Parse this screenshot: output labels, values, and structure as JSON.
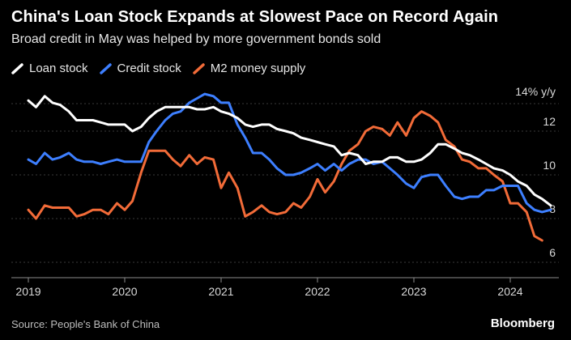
{
  "chart_data": {
    "type": "line",
    "title": "China's Loan Stock Expands at Slowest Pace on Record Again",
    "subtitle": "Broad credit in May was helped by more government bonds sold",
    "ylabel": "14% y/y",
    "ylim": [
      5.5,
      15
    ],
    "yticks": [
      6,
      8,
      10,
      12
    ],
    "xlim": [
      2018.93,
      2024.6
    ],
    "xticks": [
      2019,
      2020,
      2021,
      2022,
      2023,
      2024
    ],
    "grid": true,
    "legend_position": "top-left",
    "series": [
      {
        "name": "Loan stock",
        "color": "#ffffff",
        "points": [
          [
            2019.0,
            13.4
          ],
          [
            2019.08,
            13.1
          ],
          [
            2019.17,
            13.6
          ],
          [
            2019.25,
            13.3
          ],
          [
            2019.33,
            13.2
          ],
          [
            2019.42,
            12.9
          ],
          [
            2019.5,
            12.5
          ],
          [
            2019.58,
            12.5
          ],
          [
            2019.67,
            12.5
          ],
          [
            2019.75,
            12.4
          ],
          [
            2019.83,
            12.3
          ],
          [
            2019.92,
            12.3
          ],
          [
            2020.0,
            12.3
          ],
          [
            2020.08,
            12.0
          ],
          [
            2020.17,
            12.2
          ],
          [
            2020.25,
            12.6
          ],
          [
            2020.33,
            12.9
          ],
          [
            2020.42,
            13.1
          ],
          [
            2020.5,
            13.1
          ],
          [
            2020.58,
            13.1
          ],
          [
            2020.67,
            13.1
          ],
          [
            2020.75,
            13.0
          ],
          [
            2020.83,
            13.0
          ],
          [
            2020.92,
            13.1
          ],
          [
            2021.0,
            12.9
          ],
          [
            2021.08,
            12.8
          ],
          [
            2021.17,
            12.6
          ],
          [
            2021.25,
            12.3
          ],
          [
            2021.33,
            12.2
          ],
          [
            2021.42,
            12.3
          ],
          [
            2021.5,
            12.3
          ],
          [
            2021.58,
            12.1
          ],
          [
            2021.67,
            12.0
          ],
          [
            2021.75,
            11.9
          ],
          [
            2021.83,
            11.7
          ],
          [
            2021.92,
            11.6
          ],
          [
            2022.0,
            11.5
          ],
          [
            2022.08,
            11.4
          ],
          [
            2022.17,
            11.3
          ],
          [
            2022.25,
            10.9
          ],
          [
            2022.33,
            11.0
          ],
          [
            2022.42,
            10.9
          ],
          [
            2022.5,
            10.5
          ],
          [
            2022.58,
            10.6
          ],
          [
            2022.67,
            10.6
          ],
          [
            2022.75,
            10.8
          ],
          [
            2022.83,
            10.8
          ],
          [
            2022.92,
            10.6
          ],
          [
            2023.0,
            10.6
          ],
          [
            2023.08,
            10.7
          ],
          [
            2023.17,
            11.0
          ],
          [
            2023.25,
            11.4
          ],
          [
            2023.33,
            11.4
          ],
          [
            2023.42,
            11.2
          ],
          [
            2023.5,
            11.0
          ],
          [
            2023.58,
            10.9
          ],
          [
            2023.67,
            10.7
          ],
          [
            2023.75,
            10.5
          ],
          [
            2023.83,
            10.3
          ],
          [
            2023.92,
            10.2
          ],
          [
            2024.0,
            10.0
          ],
          [
            2024.08,
            9.7
          ],
          [
            2024.17,
            9.5
          ],
          [
            2024.25,
            9.1
          ],
          [
            2024.33,
            8.9
          ],
          [
            2024.42,
            8.6
          ]
        ]
      },
      {
        "name": "Credit stock",
        "color": "#3d7fff",
        "points": [
          [
            2019.0,
            10.7
          ],
          [
            2019.08,
            10.5
          ],
          [
            2019.17,
            11.0
          ],
          [
            2019.25,
            10.7
          ],
          [
            2019.33,
            10.8
          ],
          [
            2019.42,
            11.0
          ],
          [
            2019.5,
            10.7
          ],
          [
            2019.58,
            10.6
          ],
          [
            2019.67,
            10.6
          ],
          [
            2019.75,
            10.5
          ],
          [
            2019.83,
            10.6
          ],
          [
            2019.92,
            10.7
          ],
          [
            2020.0,
            10.6
          ],
          [
            2020.08,
            10.6
          ],
          [
            2020.17,
            10.6
          ],
          [
            2020.25,
            11.5
          ],
          [
            2020.33,
            12.0
          ],
          [
            2020.42,
            12.5
          ],
          [
            2020.5,
            12.8
          ],
          [
            2020.58,
            12.9
          ],
          [
            2020.67,
            13.3
          ],
          [
            2020.75,
            13.5
          ],
          [
            2020.83,
            13.7
          ],
          [
            2020.92,
            13.6
          ],
          [
            2021.0,
            13.3
          ],
          [
            2021.08,
            13.3
          ],
          [
            2021.17,
            12.3
          ],
          [
            2021.25,
            11.7
          ],
          [
            2021.33,
            11.0
          ],
          [
            2021.42,
            11.0
          ],
          [
            2021.5,
            10.7
          ],
          [
            2021.58,
            10.3
          ],
          [
            2021.67,
            10.0
          ],
          [
            2021.75,
            10.0
          ],
          [
            2021.83,
            10.1
          ],
          [
            2021.92,
            10.3
          ],
          [
            2022.0,
            10.5
          ],
          [
            2022.08,
            10.2
          ],
          [
            2022.17,
            10.5
          ],
          [
            2022.25,
            10.2
          ],
          [
            2022.33,
            10.5
          ],
          [
            2022.42,
            10.7
          ],
          [
            2022.5,
            10.7
          ],
          [
            2022.58,
            10.5
          ],
          [
            2022.67,
            10.6
          ],
          [
            2022.75,
            10.3
          ],
          [
            2022.83,
            10.0
          ],
          [
            2022.92,
            9.6
          ],
          [
            2023.0,
            9.4
          ],
          [
            2023.08,
            9.9
          ],
          [
            2023.17,
            10.0
          ],
          [
            2023.25,
            10.0
          ],
          [
            2023.33,
            9.5
          ],
          [
            2023.42,
            9.0
          ],
          [
            2023.5,
            8.9
          ],
          [
            2023.58,
            9.0
          ],
          [
            2023.67,
            9.0
          ],
          [
            2023.75,
            9.3
          ],
          [
            2023.83,
            9.3
          ],
          [
            2023.92,
            9.5
          ],
          [
            2024.0,
            9.5
          ],
          [
            2024.08,
            9.5
          ],
          [
            2024.17,
            8.7
          ],
          [
            2024.25,
            8.4
          ],
          [
            2024.33,
            8.3
          ],
          [
            2024.42,
            8.4
          ]
        ]
      },
      {
        "name": "M2 money supply",
        "color": "#f26b38",
        "points": [
          [
            2019.0,
            8.4
          ],
          [
            2019.08,
            8.0
          ],
          [
            2019.17,
            8.6
          ],
          [
            2019.25,
            8.5
          ],
          [
            2019.33,
            8.5
          ],
          [
            2019.42,
            8.5
          ],
          [
            2019.5,
            8.1
          ],
          [
            2019.58,
            8.2
          ],
          [
            2019.67,
            8.4
          ],
          [
            2019.75,
            8.4
          ],
          [
            2019.83,
            8.2
          ],
          [
            2019.92,
            8.7
          ],
          [
            2020.0,
            8.4
          ],
          [
            2020.08,
            8.8
          ],
          [
            2020.17,
            10.1
          ],
          [
            2020.25,
            11.1
          ],
          [
            2020.33,
            11.1
          ],
          [
            2020.42,
            11.1
          ],
          [
            2020.5,
            10.7
          ],
          [
            2020.58,
            10.4
          ],
          [
            2020.67,
            10.9
          ],
          [
            2020.75,
            10.5
          ],
          [
            2020.83,
            10.8
          ],
          [
            2020.92,
            10.7
          ],
          [
            2021.0,
            9.4
          ],
          [
            2021.08,
            10.1
          ],
          [
            2021.17,
            9.4
          ],
          [
            2021.25,
            8.1
          ],
          [
            2021.33,
            8.3
          ],
          [
            2021.42,
            8.6
          ],
          [
            2021.5,
            8.3
          ],
          [
            2021.58,
            8.2
          ],
          [
            2021.67,
            8.3
          ],
          [
            2021.75,
            8.7
          ],
          [
            2021.83,
            8.5
          ],
          [
            2021.92,
            9.0
          ],
          [
            2022.0,
            9.8
          ],
          [
            2022.08,
            9.2
          ],
          [
            2022.17,
            9.7
          ],
          [
            2022.25,
            10.5
          ],
          [
            2022.33,
            11.1
          ],
          [
            2022.42,
            11.4
          ],
          [
            2022.5,
            12.0
          ],
          [
            2022.58,
            12.2
          ],
          [
            2022.67,
            12.1
          ],
          [
            2022.75,
            11.8
          ],
          [
            2022.83,
            12.4
          ],
          [
            2022.92,
            11.8
          ],
          [
            2023.0,
            12.6
          ],
          [
            2023.08,
            12.9
          ],
          [
            2023.17,
            12.7
          ],
          [
            2023.25,
            12.4
          ],
          [
            2023.33,
            11.6
          ],
          [
            2023.42,
            11.3
          ],
          [
            2023.5,
            10.7
          ],
          [
            2023.58,
            10.6
          ],
          [
            2023.67,
            10.3
          ],
          [
            2023.75,
            10.3
          ],
          [
            2023.83,
            10.0
          ],
          [
            2023.92,
            9.7
          ],
          [
            2024.0,
            8.7
          ],
          [
            2024.08,
            8.7
          ],
          [
            2024.17,
            8.3
          ],
          [
            2024.25,
            7.2
          ],
          [
            2024.33,
            7.0
          ]
        ]
      }
    ]
  },
  "footer": {
    "source": "Source: People's Bank of China",
    "brand": "Bloomberg"
  }
}
